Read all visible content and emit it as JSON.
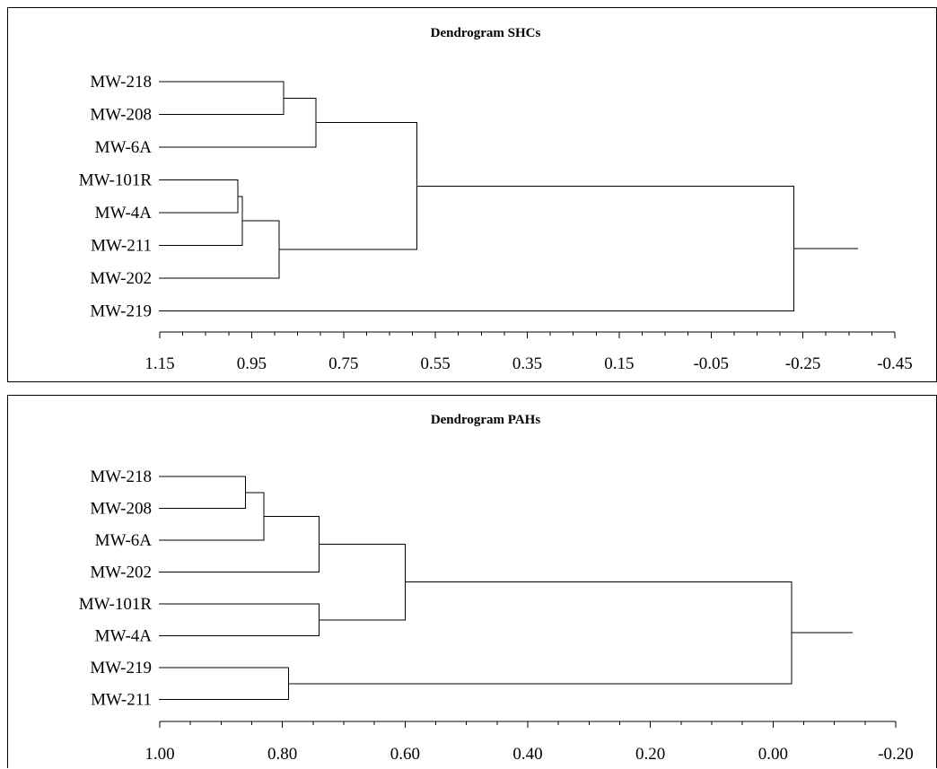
{
  "chart_data": [
    {
      "type": "dendrogram",
      "title": "Dendrogram SHCs",
      "axis": {
        "min": -0.45,
        "max": 1.15,
        "reversed": true,
        "ticks": [
          1.15,
          0.95,
          0.75,
          0.55,
          0.35,
          0.15,
          -0.05,
          -0.25,
          -0.45
        ],
        "tick_labels": [
          "1.15",
          "0.95",
          "0.75",
          "0.55",
          "0.35",
          "0.15",
          "-0.05",
          "-0.25",
          "-0.45"
        ],
        "minor_step": 0.05
      },
      "leaves": [
        "MW-218",
        "MW-208",
        "MW-6A",
        "MW-101R",
        "MW-4A",
        "MW-211",
        "MW-202",
        "MW-219"
      ],
      "merges": [
        {
          "id": "c1",
          "left": "MW-218",
          "right": "MW-208",
          "height": 0.88
        },
        {
          "id": "c2",
          "left": "c1",
          "right": "MW-6A",
          "height": 0.81
        },
        {
          "id": "c3",
          "left": "MW-101R",
          "right": "MW-4A",
          "height": 0.98
        },
        {
          "id": "c4",
          "left": "c3",
          "right": "MW-211",
          "height": 0.97
        },
        {
          "id": "c5",
          "left": "c4",
          "right": "MW-202",
          "height": 0.89
        },
        {
          "id": "c6",
          "left": "c2",
          "right": "c5",
          "height": 0.59
        },
        {
          "id": "c7",
          "left": "c6",
          "right": "MW-219",
          "height": -0.23
        }
      ],
      "root_stub_to": -0.37
    },
    {
      "type": "dendrogram",
      "title": "Dendrogram PAHs",
      "axis": {
        "min": -0.2,
        "max": 1.0,
        "reversed": true,
        "ticks": [
          1.0,
          0.8,
          0.6,
          0.4,
          0.2,
          0.0,
          -0.2
        ],
        "tick_labels": [
          "1.00",
          "0.80",
          "0.60",
          "0.40",
          "0.20",
          "0.00",
          "-0.20"
        ],
        "minor_step": 0.05
      },
      "leaves": [
        "MW-218",
        "MW-208",
        "MW-6A",
        "MW-202",
        "MW-101R",
        "MW-4A",
        "MW-219",
        "MW-211"
      ],
      "merges": [
        {
          "id": "d1",
          "left": "MW-218",
          "right": "MW-208",
          "height": 0.86
        },
        {
          "id": "d2",
          "left": "d1",
          "right": "MW-6A",
          "height": 0.83
        },
        {
          "id": "d3",
          "left": "d2",
          "right": "MW-202",
          "height": 0.74
        },
        {
          "id": "d4",
          "left": "MW-101R",
          "right": "MW-4A",
          "height": 0.74
        },
        {
          "id": "d5",
          "left": "d3",
          "right": "d4",
          "height": 0.6
        },
        {
          "id": "d6",
          "left": "MW-219",
          "right": "MW-211",
          "height": 0.79
        },
        {
          "id": "d7",
          "left": "d5",
          "right": "d6",
          "height": -0.03
        }
      ],
      "root_stub_to": -0.13
    }
  ]
}
